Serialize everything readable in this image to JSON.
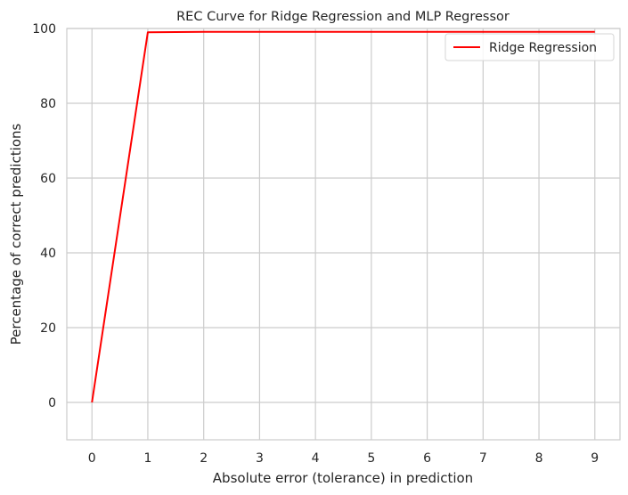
{
  "chart_data": {
    "type": "line",
    "title": "REC Curve for Ridge Regression and MLP Regressor",
    "xlabel": "Absolute error (tolerance) in prediction",
    "ylabel": "Percentage of correct predictions",
    "xlim": [
      -0.45,
      9.45
    ],
    "ylim": [
      -10,
      100
    ],
    "xticks": [
      0,
      1,
      2,
      3,
      4,
      5,
      6,
      7,
      8,
      9
    ],
    "yticks": [
      0,
      20,
      40,
      60,
      80,
      100
    ],
    "grid": true,
    "legend_position": "top-right",
    "series": [
      {
        "name": "Ridge Regression",
        "color": "#ff0000",
        "x": [
          0,
          1,
          2,
          3,
          4,
          5,
          6,
          7,
          8,
          9
        ],
        "values": [
          0,
          99.0,
          99.1,
          99.1,
          99.1,
          99.1,
          99.1,
          99.1,
          99.1,
          99.1
        ]
      }
    ]
  }
}
